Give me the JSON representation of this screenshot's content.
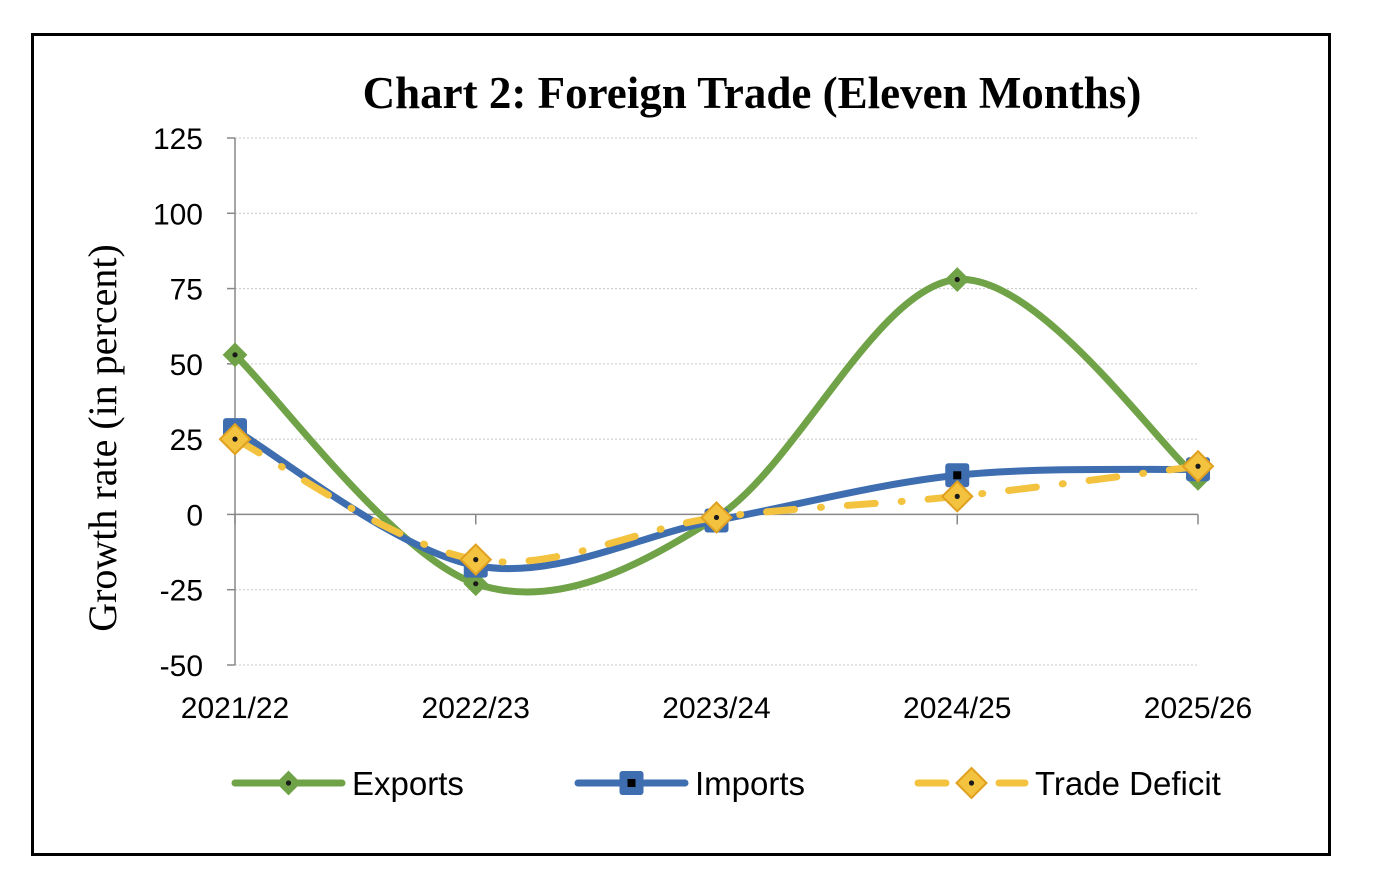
{
  "chart_data": {
    "type": "line",
    "title": "Chart 2: Foreign Trade (Eleven Months)",
    "xlabel": "",
    "ylabel": "Growth rate (in percent)",
    "categories": [
      "2021/22",
      "2022/23",
      "2023/24",
      "2024/25",
      "2025/26"
    ],
    "ylim": [
      -50,
      125
    ],
    "yticks": [
      -50,
      -25,
      0,
      25,
      50,
      75,
      100,
      125
    ],
    "ytick_labels": [
      "-50",
      "-25",
      "0",
      "25",
      "50",
      "75",
      "100",
      "125"
    ],
    "grid": true,
    "legend_position": "bottom",
    "series": [
      {
        "name": "Exports",
        "values": [
          53,
          -23,
          -1,
          78,
          12
        ],
        "color": "#70a347",
        "marker": "diamond",
        "line_style": "solid"
      },
      {
        "name": "Imports",
        "values": [
          28,
          -17,
          -2,
          13,
          15
        ],
        "color": "#3e6eb0",
        "marker": "square",
        "line_style": "solid"
      },
      {
        "name": "Trade Deficit",
        "values": [
          25,
          -15,
          -1,
          6,
          16
        ],
        "color": "#f3c23e",
        "marker": "diamond",
        "line_style": "dash-dot"
      }
    ]
  }
}
